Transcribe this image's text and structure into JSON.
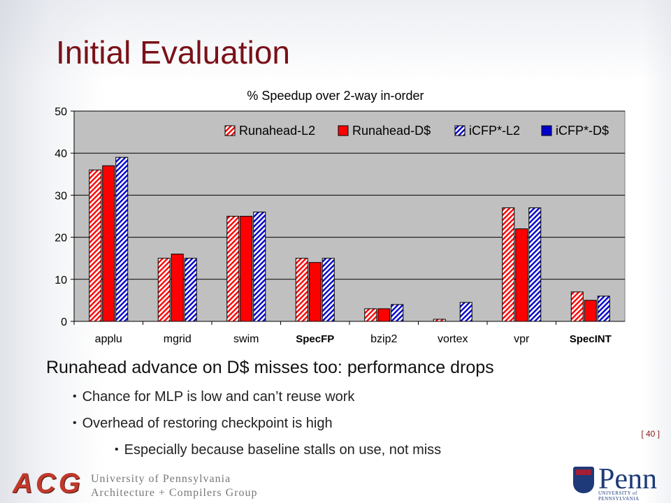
{
  "slide": {
    "title": "Initial Evaluation",
    "page_number": "[ 40 ]",
    "bullets": {
      "main": "Runahead advance on D$ misses too: performance drops",
      "sub": [
        "Chance for MLP is low and can’t reuse work",
        "Overhead of restoring checkpoint is high"
      ],
      "subsub": [
        "Especially because baseline stalls on use, not miss"
      ]
    },
    "footer": {
      "acg_logo": "ACG",
      "university_line1": "University of Pennsylvania",
      "university_line2": "Architecture + Compilers Group",
      "penn_logo_text": "Penn",
      "penn_logo_sub": "UNIVERSITY of PENNSYLVANIA"
    }
  },
  "chart_data": {
    "type": "bar",
    "title": "% Speedup over 2-way in-order",
    "categories": [
      "applu",
      "mgrid",
      "swim",
      "SpecFP",
      "bzip2",
      "vortex",
      "vpr",
      "SpecINT"
    ],
    "group_labels": [
      "SpecFP",
      "SpecINT"
    ],
    "ylim": [
      0,
      50
    ],
    "yticks": [
      0,
      10,
      20,
      30,
      40,
      50
    ],
    "grid": true,
    "legend_position": "top-right",
    "series": [
      {
        "name": "Runahead-L2",
        "color": "#ff0000",
        "pattern": "hatched",
        "values": [
          36,
          15,
          25,
          15,
          3,
          0.5,
          27,
          7
        ]
      },
      {
        "name": "Runahead-D$",
        "color": "#ff0000",
        "pattern": "solid",
        "values": [
          37,
          16,
          25,
          14,
          3,
          0,
          22,
          5
        ]
      },
      {
        "name": "iCFP*-L2",
        "color": "#0000cc",
        "pattern": "hatched",
        "values": [
          39,
          15,
          26,
          15,
          4,
          4.5,
          27,
          6
        ]
      },
      {
        "name": "iCFP*-D$",
        "color": "#0000cc",
        "pattern": "solid",
        "values": [
          null,
          null,
          null,
          null,
          null,
          null,
          null,
          null
        ]
      }
    ]
  }
}
